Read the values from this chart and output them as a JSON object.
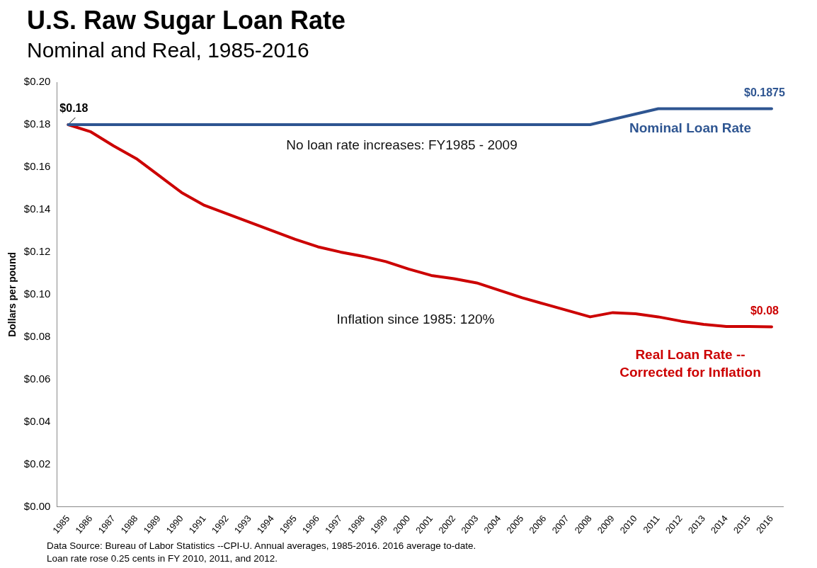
{
  "chart_data": {
    "type": "line",
    "title": "U.S. Raw Sugar Loan Rate",
    "subtitle": "Nominal and Real, 1985-2016",
    "ylabel": "Dollars per pound",
    "categories": [
      "1985",
      "1986",
      "1987",
      "1988",
      "1989",
      "1990",
      "1991",
      "1992",
      "1993",
      "1994",
      "1995",
      "1996",
      "1997",
      "1998",
      "1999",
      "2000",
      "2001",
      "2002",
      "2003",
      "2004",
      "2005",
      "2006",
      "2007",
      "2008",
      "2009",
      "2010",
      "2011",
      "2012",
      "2013",
      "2014",
      "2015",
      "2016"
    ],
    "series": [
      {
        "name": "Nominal Loan Rate",
        "color": "#2e5591",
        "values": [
          0.18,
          0.18,
          0.18,
          0.18,
          0.18,
          0.18,
          0.18,
          0.18,
          0.18,
          0.18,
          0.18,
          0.18,
          0.18,
          0.18,
          0.18,
          0.18,
          0.18,
          0.18,
          0.18,
          0.18,
          0.18,
          0.18,
          0.18,
          0.18,
          0.1825,
          0.185,
          0.1875,
          0.1875,
          0.1875,
          0.1875,
          0.1875,
          0.1875
        ],
        "value_labels": [
          "$0.18",
          null,
          null,
          null,
          null,
          null,
          null,
          null,
          null,
          null,
          null,
          null,
          null,
          null,
          null,
          null,
          null,
          null,
          null,
          null,
          null,
          null,
          null,
          null,
          null,
          null,
          null,
          null,
          null,
          null,
          null,
          "$0.1875"
        ]
      },
      {
        "name": "Real Loan Rate -- Corrected for Inflation",
        "color": "#cc0000",
        "values": [
          0.18,
          0.1766,
          0.17,
          0.164,
          0.156,
          0.148,
          0.142,
          0.138,
          0.134,
          0.13,
          0.126,
          0.1225,
          0.12,
          0.118,
          0.1155,
          0.112,
          0.109,
          0.1075,
          0.1055,
          0.102,
          0.0985,
          0.0955,
          0.0925,
          0.0895,
          0.0915,
          0.091,
          0.0895,
          0.0875,
          0.086,
          0.085,
          0.085,
          0.0848
        ],
        "value_labels": [
          null,
          null,
          null,
          null,
          null,
          null,
          null,
          null,
          null,
          null,
          null,
          null,
          null,
          null,
          null,
          null,
          null,
          null,
          null,
          null,
          null,
          null,
          null,
          null,
          null,
          null,
          null,
          null,
          null,
          null,
          null,
          "$0.08"
        ]
      }
    ],
    "ylim": [
      0,
      0.2
    ],
    "yticks": [
      {
        "value": 0,
        "label": "$0.00"
      },
      {
        "value": 0.02,
        "label": "$0.02"
      },
      {
        "value": 0.04,
        "label": "$0.04"
      },
      {
        "value": 0.06,
        "label": "$0.06"
      },
      {
        "value": 0.08,
        "label": "$0.08"
      },
      {
        "value": 0.1,
        "label": "$0.10"
      },
      {
        "value": 0.12,
        "label": "$0.12"
      },
      {
        "value": 0.14,
        "label": "$0.14"
      },
      {
        "value": 0.16,
        "label": "$0.16"
      },
      {
        "value": 0.18,
        "label": "$0.18"
      },
      {
        "value": 0.2,
        "label": "$0.20"
      }
    ],
    "grid": false,
    "legend": false,
    "marker": "none",
    "line_style": "solid",
    "annotations": [
      "No loan rate increases: FY1985 - 2009",
      "Inflation since 1985: 120%",
      "Data Source: Bureau of Labor Statistics --CPI-U. Annual averages, 1985-2016. 2016 average to-date.",
      "Loan rate rose 0.25 cents in FY 2010, 2011, and 2012."
    ]
  }
}
